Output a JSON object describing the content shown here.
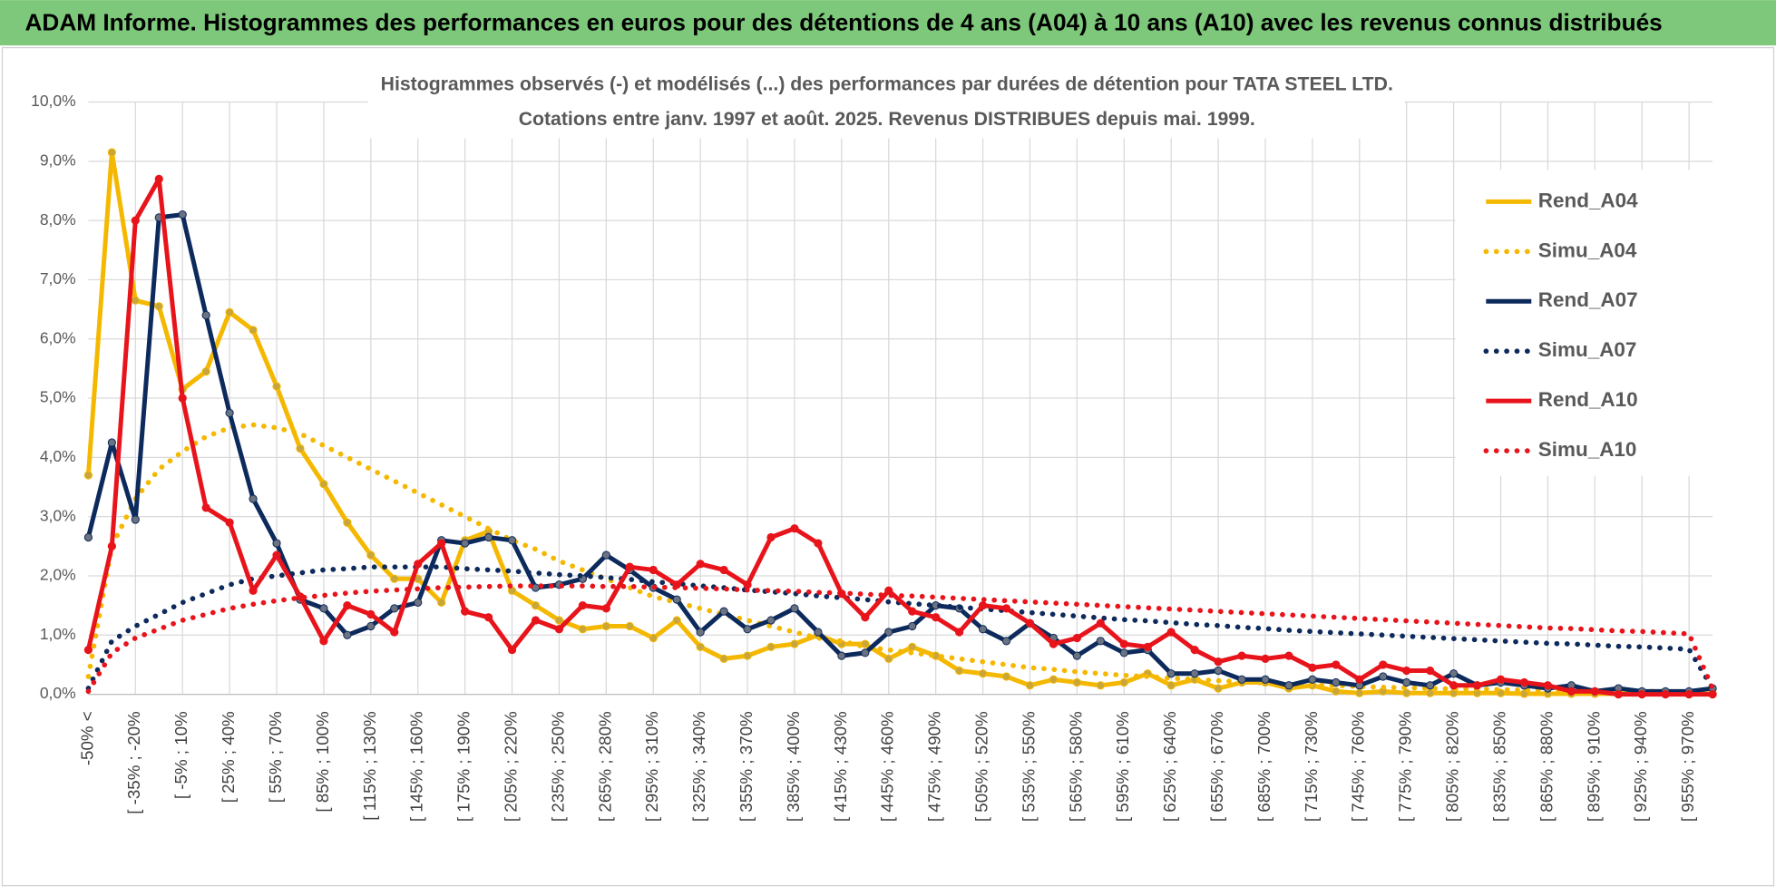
{
  "header": {
    "title": "ADAM Informe. Histogrammes des performances en euros pour des détentions de 4 ans (A04) à 10 ans (A10) avec les revenus connus distribués"
  },
  "chart_data": {
    "type": "line",
    "title": "Histogrammes observés (-) et modélisés (...) des performances par durées de détention pour TATA STEEL LTD.",
    "subtitle": "Cotations entre janv. 1997 et août. 2025. Revenus DISTRIBUES depuis mai. 1999.",
    "categories": [
      "-50% <",
      null,
      "[ -35% ; -20%",
      null,
      "[ -5% ; 10%",
      null,
      "[ 25% ; 40%",
      null,
      "[ 55% ; 70%",
      null,
      "[ 85% ; 100%",
      null,
      "[ 115% ; 130%",
      null,
      "[ 145% ; 160%",
      null,
      "[ 175% ; 190%",
      null,
      "[ 205% ; 220%",
      null,
      "[ 235% ; 250%",
      null,
      "[ 265% ; 280%",
      null,
      "[ 295% ; 310%",
      null,
      "[ 325% ; 340%",
      null,
      "[ 355% ; 370%",
      null,
      "[ 385% ; 400%",
      null,
      "[ 415% ; 430%",
      null,
      "[ 445% ; 460%",
      null,
      "[ 475% ; 490%",
      null,
      "[ 505% ; 520%",
      null,
      "[ 535% ; 550%",
      null,
      "[ 565% ; 580%",
      null,
      "[ 595% ; 610%",
      null,
      "[ 625% ; 640%",
      null,
      "[ 655% ; 670%",
      null,
      "[ 685% ; 700%",
      null,
      "[ 715% ; 730%",
      null,
      "[ 745% ; 760%",
      null,
      "[ 775% ; 790%",
      null,
      "[ 805% ; 820%",
      null,
      "[ 835% ; 850%",
      null,
      "[ 865% ; 880%",
      null,
      "[ 895% ; 910%",
      null,
      "[ 925% ; 940%",
      null,
      "[ 955% ; 970%",
      null
    ],
    "ylim": [
      0,
      10
    ],
    "yticks": [
      {
        "value": 0,
        "label": "0,0%"
      },
      {
        "value": 1,
        "label": "1,0%"
      },
      {
        "value": 2,
        "label": "2,0%"
      },
      {
        "value": 3,
        "label": "3,0%"
      },
      {
        "value": 4,
        "label": "4,0%"
      },
      {
        "value": 5,
        "label": "5,0%"
      },
      {
        "value": 6,
        "label": "6,0%"
      },
      {
        "value": 7,
        "label": "7,0%"
      },
      {
        "value": 8,
        "label": "8,0%"
      },
      {
        "value": 9,
        "label": "9,0%"
      },
      {
        "value": 10,
        "label": "10,0%"
      }
    ],
    "grid": true,
    "legend": "right",
    "series": [
      {
        "name": "Rend_A04",
        "color": "#f5b800",
        "style": "solid",
        "marker": "#c9a63a",
        "values": [
          3.7,
          9.15,
          6.65,
          6.55,
          5.15,
          5.45,
          6.45,
          6.15,
          5.2,
          4.15,
          3.55,
          2.9,
          2.35,
          1.95,
          1.95,
          1.55,
          2.6,
          2.75,
          1.75,
          1.5,
          1.25,
          1.1,
          1.15,
          1.15,
          0.95,
          1.25,
          0.8,
          0.6,
          0.65,
          0.8,
          0.85,
          1.0,
          0.85,
          0.85,
          0.6,
          0.8,
          0.65,
          0.4,
          0.35,
          0.3,
          0.15,
          0.25,
          0.2,
          0.15,
          0.2,
          0.35,
          0.15,
          0.25,
          0.1,
          0.2,
          0.2,
          0.1,
          0.15,
          0.05,
          0.02,
          0.05,
          0.02,
          0.02,
          0.02,
          0.02,
          0.02,
          0.01,
          0.01,
          0.01,
          0.01,
          0.01,
          0.01,
          0.01,
          0.01,
          0.01
        ]
      },
      {
        "name": "Simu_A04",
        "color": "#f5b800",
        "style": "dotted",
        "values": [
          0.3,
          2.5,
          3.3,
          3.8,
          4.1,
          4.35,
          4.5,
          4.55,
          4.5,
          4.4,
          4.2,
          4.0,
          3.8,
          3.6,
          3.4,
          3.2,
          3.0,
          2.8,
          2.6,
          2.45,
          2.25,
          2.1,
          1.95,
          1.8,
          1.65,
          1.55,
          1.45,
          1.35,
          1.25,
          1.15,
          1.05,
          0.95,
          0.9,
          0.8,
          0.75,
          0.7,
          0.65,
          0.6,
          0.55,
          0.5,
          0.45,
          0.42,
          0.38,
          0.35,
          0.32,
          0.3,
          0.27,
          0.25,
          0.23,
          0.21,
          0.19,
          0.17,
          0.16,
          0.15,
          0.13,
          0.12,
          0.11,
          0.1,
          0.09,
          0.09,
          0.08,
          0.07,
          0.07,
          0.06,
          0.06,
          0.05,
          0.05,
          0.05,
          0.04,
          0.04
        ]
      },
      {
        "name": "Rend_A07",
        "color": "#0d2a5c",
        "style": "solid",
        "marker": "#6b7280",
        "values": [
          2.65,
          4.25,
          2.95,
          8.05,
          8.1,
          6.4,
          4.75,
          3.3,
          2.55,
          1.6,
          1.45,
          1.0,
          1.15,
          1.45,
          1.55,
          2.6,
          2.55,
          2.65,
          2.6,
          1.8,
          1.85,
          1.95,
          2.35,
          2.1,
          1.8,
          1.6,
          1.05,
          1.4,
          1.1,
          1.25,
          1.45,
          1.05,
          0.65,
          0.7,
          1.05,
          1.15,
          1.5,
          1.45,
          1.1,
          0.9,
          1.2,
          0.95,
          0.65,
          0.9,
          0.7,
          0.75,
          0.35,
          0.35,
          0.4,
          0.25,
          0.25,
          0.15,
          0.25,
          0.2,
          0.15,
          0.3,
          0.2,
          0.15,
          0.35,
          0.15,
          0.2,
          0.15,
          0.1,
          0.15,
          0.05,
          0.1,
          0.05,
          0.05,
          0.05,
          0.1
        ]
      },
      {
        "name": "Simu_A07",
        "color": "#0d2a5c",
        "style": "dotted",
        "values": [
          0.1,
          0.9,
          1.15,
          1.35,
          1.55,
          1.7,
          1.85,
          1.95,
          2.0,
          2.05,
          2.1,
          2.12,
          2.15,
          2.15,
          2.15,
          2.15,
          2.12,
          2.1,
          2.08,
          2.05,
          2.02,
          2.0,
          1.97,
          1.94,
          1.9,
          1.87,
          1.83,
          1.8,
          1.76,
          1.73,
          1.7,
          1.66,
          1.63,
          1.6,
          1.56,
          1.53,
          1.5,
          1.47,
          1.44,
          1.41,
          1.38,
          1.35,
          1.32,
          1.29,
          1.26,
          1.24,
          1.21,
          1.18,
          1.16,
          1.13,
          1.11,
          1.08,
          1.06,
          1.04,
          1.02,
          1.0,
          0.98,
          0.96,
          0.94,
          0.92,
          0.9,
          0.88,
          0.86,
          0.85,
          0.83,
          0.81,
          0.8,
          0.78,
          0.76,
          0.1
        ]
      },
      {
        "name": "Rend_A10",
        "color": "#e8141b",
        "style": "solid",
        "marker": "#e8141b",
        "values": [
          0.75,
          2.5,
          8.0,
          8.7,
          5.0,
          3.15,
          2.9,
          1.75,
          2.35,
          1.65,
          0.9,
          1.5,
          1.35,
          1.05,
          2.2,
          2.55,
          1.4,
          1.3,
          0.75,
          1.25,
          1.1,
          1.5,
          1.45,
          2.15,
          2.1,
          1.85,
          2.2,
          2.1,
          1.85,
          2.65,
          2.8,
          2.55,
          1.7,
          1.3,
          1.75,
          1.4,
          1.3,
          1.05,
          1.5,
          1.45,
          1.2,
          0.85,
          0.95,
          1.2,
          0.85,
          0.8,
          1.05,
          0.75,
          0.55,
          0.65,
          0.6,
          0.65,
          0.45,
          0.5,
          0.25,
          0.5,
          0.4,
          0.4,
          0.15,
          0.15,
          0.25,
          0.2,
          0.15,
          0.05,
          0.05,
          0.0,
          0.0,
          0.0,
          0.0,
          0.0
        ]
      },
      {
        "name": "Simu_A10",
        "color": "#e8141b",
        "style": "dotted",
        "values": [
          0.05,
          0.7,
          0.95,
          1.1,
          1.25,
          1.35,
          1.45,
          1.52,
          1.58,
          1.63,
          1.67,
          1.71,
          1.74,
          1.76,
          1.78,
          1.8,
          1.81,
          1.82,
          1.83,
          1.83,
          1.83,
          1.83,
          1.82,
          1.82,
          1.81,
          1.8,
          1.79,
          1.78,
          1.76,
          1.75,
          1.74,
          1.72,
          1.71,
          1.69,
          1.67,
          1.66,
          1.64,
          1.62,
          1.6,
          1.58,
          1.56,
          1.54,
          1.52,
          1.5,
          1.48,
          1.46,
          1.44,
          1.42,
          1.4,
          1.38,
          1.36,
          1.34,
          1.32,
          1.3,
          1.28,
          1.26,
          1.24,
          1.22,
          1.2,
          1.18,
          1.16,
          1.14,
          1.12,
          1.11,
          1.09,
          1.07,
          1.06,
          1.04,
          1.02,
          0.1
        ]
      }
    ]
  }
}
